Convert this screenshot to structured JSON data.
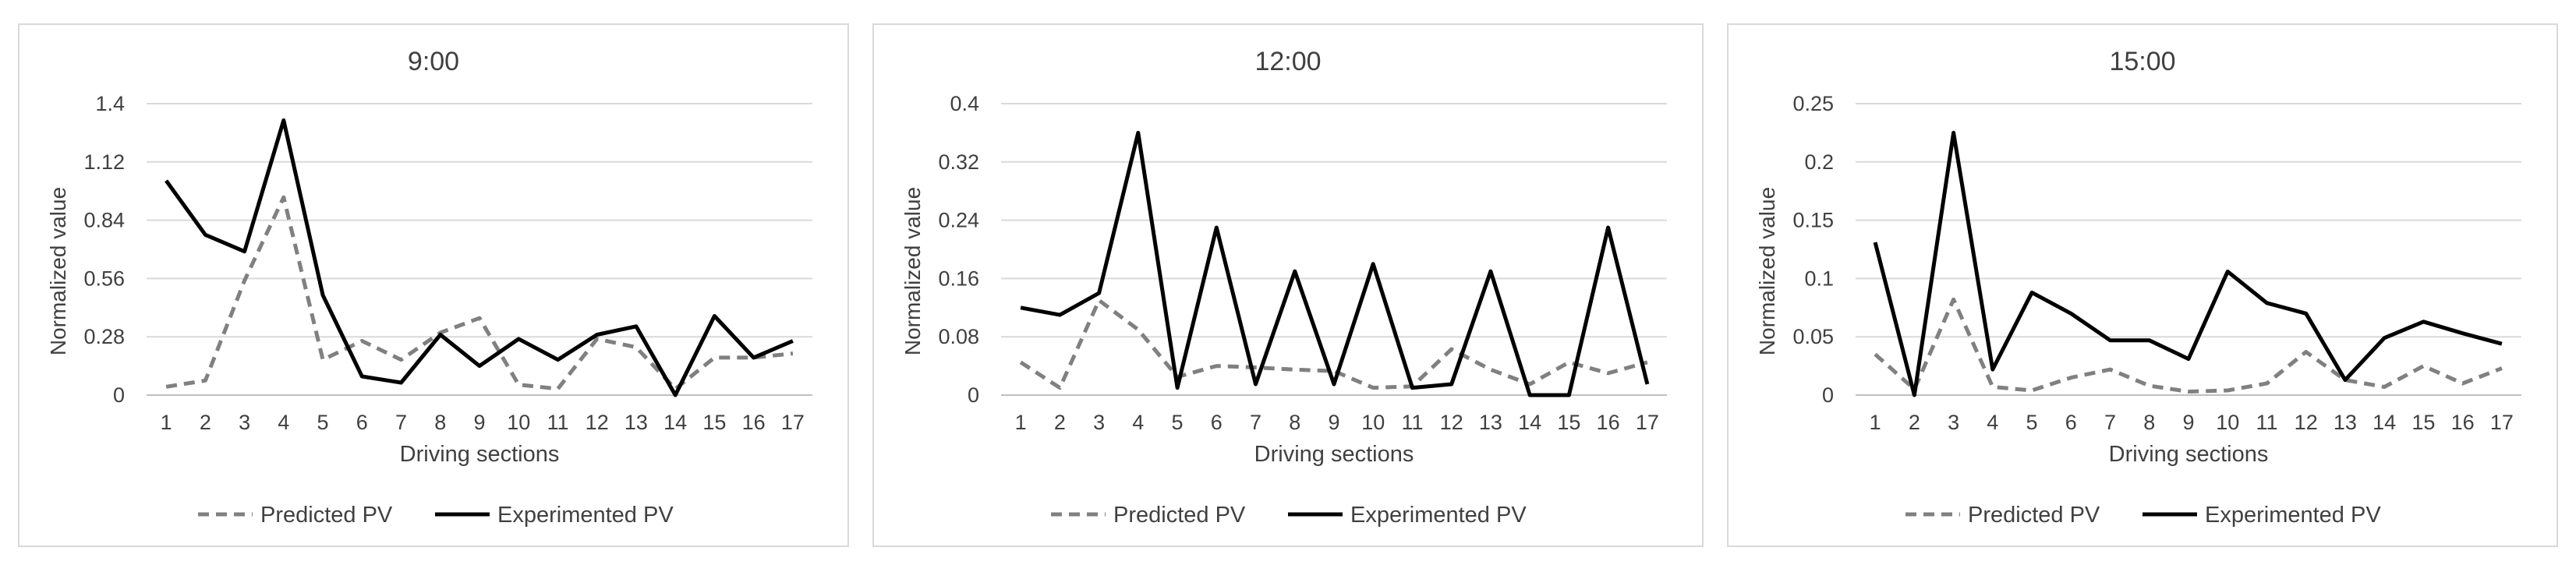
{
  "colors": {
    "predicted": "#808080",
    "experimented": "#000000",
    "grid": "#d9d9d9",
    "axis": "#bfbfbf",
    "text": "#404040",
    "panel_border": "#d9d9d9"
  },
  "chart_data": [
    {
      "type": "line",
      "title": "9:00",
      "xlabel": "Driving sections",
      "ylabel": "Normalized value",
      "categories": [
        "1",
        "2",
        "3",
        "4",
        "5",
        "6",
        "7",
        "8",
        "9",
        "10",
        "11",
        "12",
        "13",
        "14",
        "15",
        "16",
        "17"
      ],
      "ylim": [
        0,
        1.4
      ],
      "yticks": [
        "0",
        "0.28",
        "0.56",
        "0.84",
        "1.12",
        "1.4"
      ],
      "grid": true,
      "legend_position": "bottom",
      "series": [
        {
          "name": "Predicted PV",
          "style": "dashed",
          "values": [
            0.04,
            0.07,
            0.55,
            0.95,
            0.17,
            0.26,
            0.17,
            0.3,
            0.37,
            0.05,
            0.03,
            0.27,
            0.23,
            0.03,
            0.18,
            0.18,
            0.2
          ]
        },
        {
          "name": "Experimented PV",
          "style": "solid",
          "values": [
            1.03,
            0.77,
            0.69,
            1.32,
            0.48,
            0.09,
            0.06,
            0.29,
            0.14,
            0.27,
            0.17,
            0.29,
            0.33,
            0.0,
            0.38,
            0.18,
            0.26
          ]
        }
      ]
    },
    {
      "type": "line",
      "title": "12:00",
      "xlabel": "Driving sections",
      "ylabel": "Normalized value",
      "categories": [
        "1",
        "2",
        "3",
        "4",
        "5",
        "6",
        "7",
        "8",
        "9",
        "10",
        "11",
        "12",
        "13",
        "14",
        "15",
        "16",
        "17"
      ],
      "ylim": [
        0,
        0.4
      ],
      "yticks": [
        "0",
        "0.08",
        "0.16",
        "0.24",
        "0.32",
        "0.4"
      ],
      "grid": true,
      "legend_position": "bottom",
      "series": [
        {
          "name": "Predicted PV",
          "style": "dashed",
          "values": [
            0.045,
            0.01,
            0.13,
            0.09,
            0.025,
            0.04,
            0.038,
            0.035,
            0.033,
            0.01,
            0.012,
            0.063,
            0.035,
            0.015,
            0.045,
            0.03,
            0.045
          ]
        },
        {
          "name": "Experimented PV",
          "style": "solid",
          "values": [
            0.12,
            0.11,
            0.14,
            0.36,
            0.01,
            0.23,
            0.015,
            0.17,
            0.015,
            0.18,
            0.01,
            0.015,
            0.17,
            0.0,
            0.0,
            0.23,
            0.015
          ]
        }
      ]
    },
    {
      "type": "line",
      "title": "15:00",
      "xlabel": "Driving sections",
      "ylabel": "Normalized value",
      "categories": [
        "1",
        "2",
        "3",
        "4",
        "5",
        "6",
        "7",
        "8",
        "9",
        "10",
        "11",
        "12",
        "13",
        "14",
        "15",
        "16",
        "17"
      ],
      "ylim": [
        0,
        0.25
      ],
      "yticks": [
        "0",
        "0.05",
        "0.1",
        "0.15",
        "0.2",
        "0.25"
      ],
      "grid": true,
      "legend_position": "bottom",
      "series": [
        {
          "name": "Predicted PV",
          "style": "dashed",
          "values": [
            0.035,
            0.005,
            0.082,
            0.007,
            0.004,
            0.015,
            0.022,
            0.008,
            0.003,
            0.004,
            0.01,
            0.037,
            0.013,
            0.007,
            0.025,
            0.01,
            0.023
          ]
        },
        {
          "name": "Experimented PV",
          "style": "solid",
          "values": [
            0.131,
            0.0,
            0.225,
            0.022,
            0.088,
            0.07,
            0.047,
            0.047,
            0.031,
            0.106,
            0.079,
            0.07,
            0.013,
            0.049,
            0.063,
            0.053,
            0.044
          ]
        }
      ]
    }
  ]
}
